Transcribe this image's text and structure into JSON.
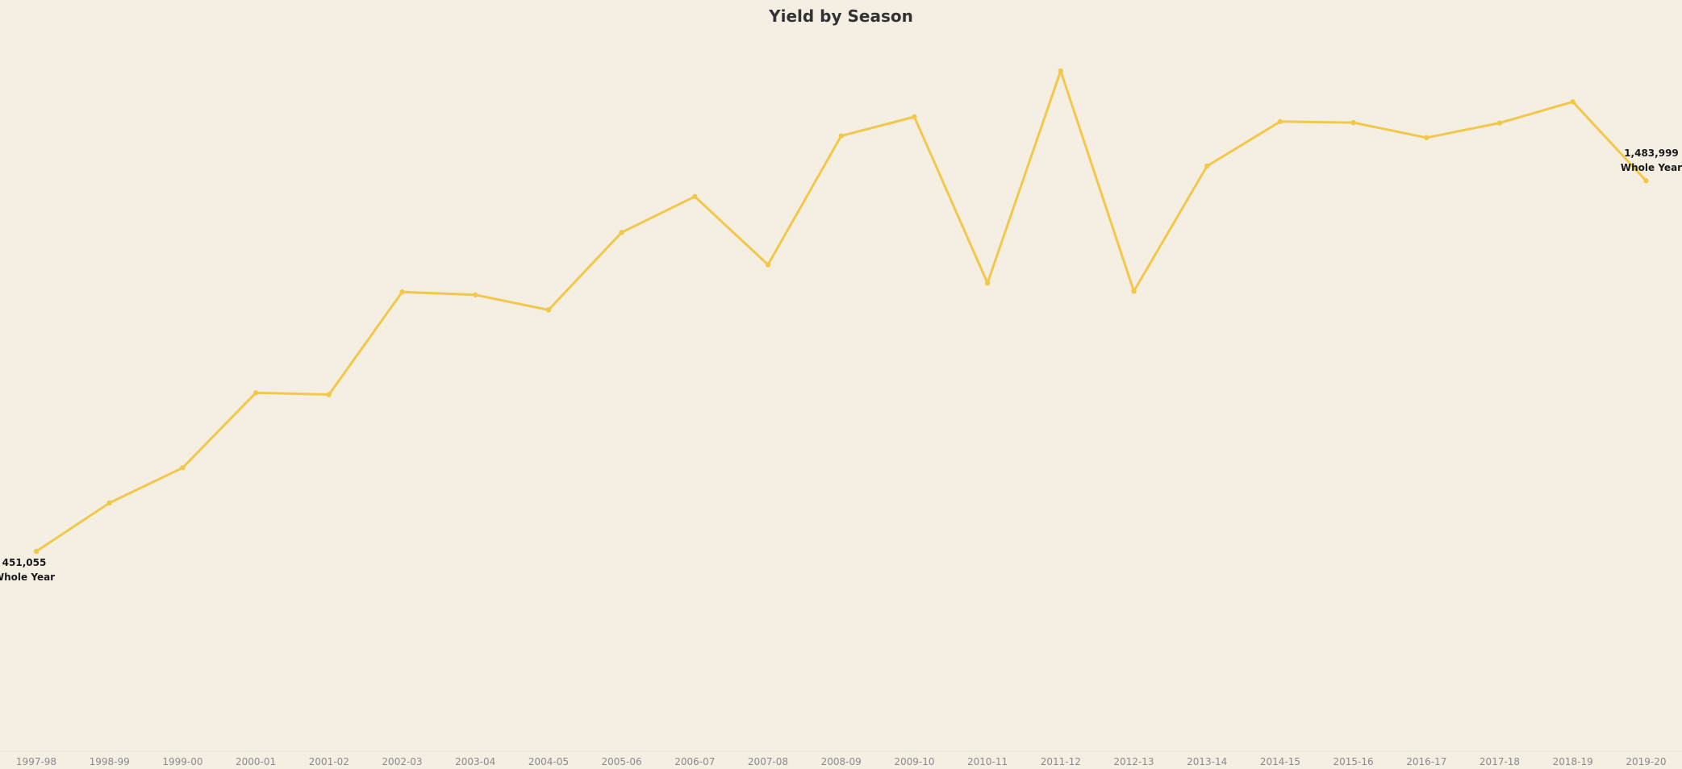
{
  "chart_data": {
    "type": "line",
    "title": "Yield by Season",
    "xlabel": "",
    "ylabel": "",
    "grid": false,
    "line_color": "#f2c84b",
    "background_color": "#f5eee3",
    "categories": [
      "1997-98",
      "1998-99",
      "1999-00",
      "2000-01",
      "2001-02",
      "2002-03",
      "2003-04",
      "2004-05",
      "2005-06",
      "2006-07",
      "2007-08",
      "2008-09",
      "2009-10",
      "2010-11",
      "2011-12",
      "2012-13",
      "2013-14",
      "2014-15",
      "2015-16",
      "2016-17",
      "2017-18",
      "2018-19",
      "2019-20"
    ],
    "series": [
      {
        "values": [
          451055,
          586000,
          684000,
          893000,
          888000,
          1174000,
          1166000,
          1124000,
          1340000,
          1440000,
          1250000,
          1609000,
          1662000,
          1199000,
          1790000,
          1176000,
          1525000,
          1649000,
          1646000,
          1604000,
          1645000,
          1704000,
          1483999
        ]
      }
    ],
    "ylim": [
      0,
      1800000
    ],
    "annotations": [
      {
        "category": "1997-98",
        "value_text": "451,055",
        "sub_text": "Whole Year"
      },
      {
        "category": "2019-20",
        "value_text": "1,483,999",
        "sub_text": "Whole Year"
      }
    ]
  }
}
